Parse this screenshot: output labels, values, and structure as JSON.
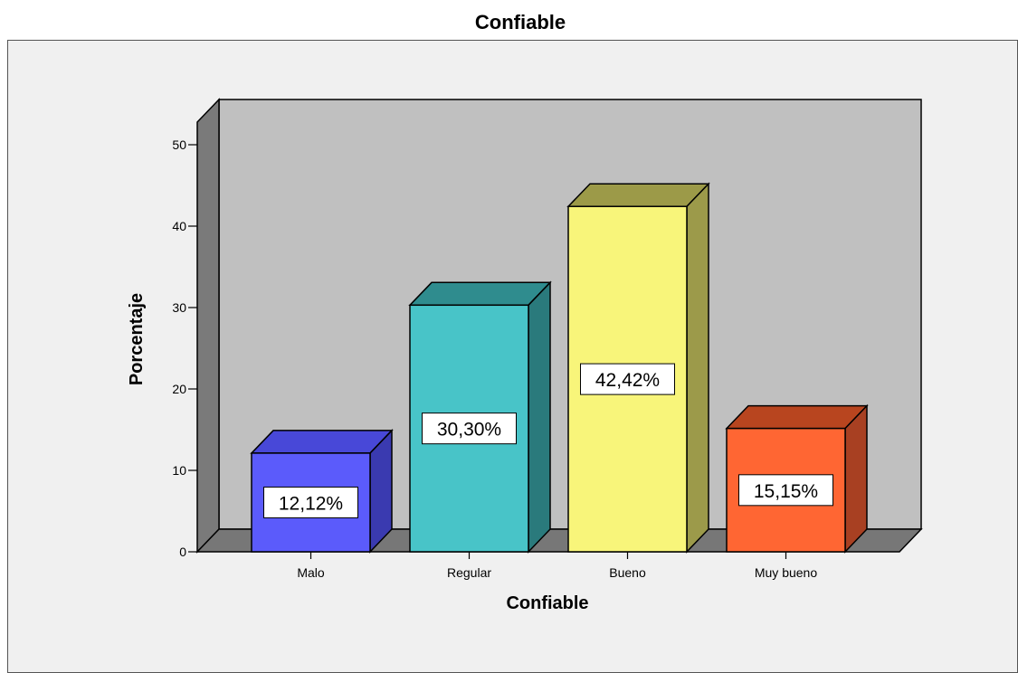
{
  "chart_data": {
    "type": "bar",
    "title": "Confiable",
    "xlabel": "Confiable",
    "ylabel": "Porcentaje",
    "categories": [
      "Malo",
      "Regular",
      "Bueno",
      "Muy bueno"
    ],
    "values": [
      12.12,
      30.3,
      42.42,
      15.15
    ],
    "data_labels": [
      "12,12%",
      "30,30%",
      "42,42%",
      "15,15%"
    ],
    "ylim": [
      0,
      50
    ],
    "yticks": [
      0,
      10,
      20,
      30,
      40,
      50
    ],
    "style": "3d",
    "colors": {
      "front": [
        "#5b5bfb",
        "#48c4c8",
        "#f8f57a",
        "#ff6633"
      ],
      "side": [
        "#3a3ab0",
        "#2a7a7c",
        "#9c9a4a",
        "#a84022"
      ],
      "top": [
        "#4848d8",
        "#2f8c8e",
        "#9c9a48",
        "#b8451f"
      ],
      "back_wall": "#c0c0c0",
      "side_wall": "#7a7a7a",
      "floor": "#777777",
      "background": "#f0f0f0"
    }
  }
}
